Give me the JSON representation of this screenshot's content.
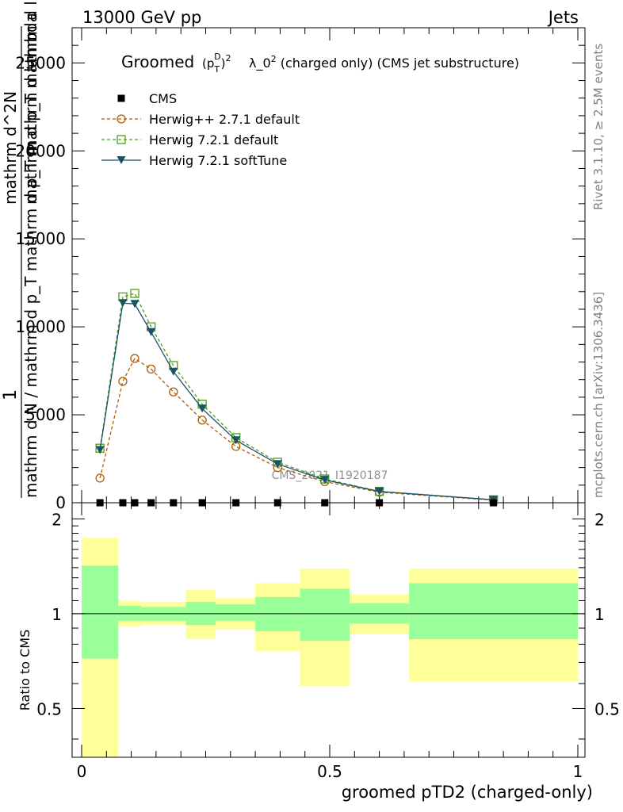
{
  "header": {
    "left": "13000 GeV pp",
    "right": "Jets"
  },
  "side_labels": {
    "rivet": "Rivet 3.1.10, ≥ 2.5M events",
    "mcplots": "mcplots.cern.ch [arXiv:1306.3436]"
  },
  "watermark": "CMS_2021_I1920187",
  "title": {
    "prefix": "Groomed",
    "formula": "(p_T^D)^2",
    "suffix": "λ_0^2  (charged only) (CMS jet substructure)"
  },
  "ylabel_main": {
    "numerator": "1",
    "denominator": "mathrm d N / mathrm d p_T mathrm d p_T mathrm d lambda",
    "top_line1": "mathrm d^2N",
    "top_line2": "mathrm d p_T mathrm d lambda"
  },
  "ylabel_ratio": "Ratio to CMS",
  "xlabel": "groomed pTD2 (charged-only)",
  "colors": {
    "cms": "#000000",
    "herwigpp": "#b35900",
    "herwig721": "#4d9e1a",
    "softtune": "#1a5266",
    "band_inner": "#99ff99",
    "band_outer": "#ffff99"
  },
  "chart_data": [
    {
      "type": "line",
      "panel": "main",
      "xlim": [
        0,
        1
      ],
      "ylim": [
        0,
        27000
      ],
      "x_ticks": [
        "0",
        "0.5",
        "1"
      ],
      "y_ticks": [
        0,
        5000,
        10000,
        15000,
        20000,
        25000
      ],
      "legend_position": "top-left",
      "series": [
        {
          "name": "CMS",
          "marker": "square",
          "x": [
            0.037,
            0.083,
            0.107,
            0.14,
            0.185,
            0.243,
            0.311,
            0.395,
            0.49,
            0.6,
            0.83
          ],
          "y": [
            0,
            0,
            0,
            0,
            0,
            0,
            0,
            0,
            0,
            0,
            0
          ]
        },
        {
          "name": "Herwig++ 2.7.1 default",
          "marker": "circle",
          "style": "dashed",
          "x": [
            0.037,
            0.083,
            0.107,
            0.14,
            0.185,
            0.243,
            0.311,
            0.395,
            0.49,
            0.6,
            0.83
          ],
          "y": [
            1400,
            6900,
            8200,
            7600,
            6300,
            4700,
            3200,
            2000,
            1200,
            600,
            150
          ]
        },
        {
          "name": "Herwig 7.2.1 default",
          "marker": "open-square",
          "style": "dashed",
          "x": [
            0.037,
            0.083,
            0.107,
            0.14,
            0.185,
            0.243,
            0.311,
            0.395,
            0.49,
            0.6,
            0.83
          ],
          "y": [
            3100,
            11700,
            11900,
            10000,
            7800,
            5600,
            3700,
            2300,
            1350,
            650,
            170
          ]
        },
        {
          "name": "Herwig 7.2.1 softTune",
          "marker": "triangle-down",
          "style": "solid",
          "x": [
            0.037,
            0.083,
            0.107,
            0.14,
            0.185,
            0.243,
            0.311,
            0.395,
            0.49,
            0.6,
            0.83
          ],
          "y": [
            3000,
            11350,
            11300,
            9700,
            7450,
            5350,
            3550,
            2200,
            1300,
            640,
            165
          ]
        }
      ]
    },
    {
      "type": "area",
      "panel": "ratio",
      "xlim": [
        0,
        1
      ],
      "ylim": [
        0.35,
        2.25
      ],
      "x_ticks": [
        "0",
        "0.5",
        "1"
      ],
      "y_ticks": [
        "0.5",
        "1",
        "2"
      ],
      "log_scale": true,
      "reference": 1,
      "bins": [
        {
          "x0": 0.0,
          "x1": 0.074,
          "inner": [
            0.72,
            1.42
          ],
          "outer": [
            0.0,
            1.74
          ]
        },
        {
          "x0": 0.074,
          "x1": 0.12,
          "inner": [
            0.95,
            1.06
          ],
          "outer": [
            0.91,
            1.1
          ]
        },
        {
          "x0": 0.12,
          "x1": 0.21,
          "inner": [
            0.95,
            1.05
          ],
          "outer": [
            0.92,
            1.09
          ]
        },
        {
          "x0": 0.21,
          "x1": 0.27,
          "inner": [
            0.92,
            1.09
          ],
          "outer": [
            0.83,
            1.19
          ]
        },
        {
          "x0": 0.27,
          "x1": 0.35,
          "inner": [
            0.95,
            1.07
          ],
          "outer": [
            0.89,
            1.12
          ]
        },
        {
          "x0": 0.35,
          "x1": 0.44,
          "inner": [
            0.88,
            1.13
          ],
          "outer": [
            0.76,
            1.25
          ]
        },
        {
          "x0": 0.44,
          "x1": 0.54,
          "inner": [
            0.82,
            1.2
          ],
          "outer": [
            0.59,
            1.39
          ]
        },
        {
          "x0": 0.54,
          "x1": 0.66,
          "inner": [
            0.93,
            1.08
          ],
          "outer": [
            0.86,
            1.15
          ]
        },
        {
          "x0": 0.66,
          "x1": 1.0,
          "inner": [
            0.83,
            1.25
          ],
          "outer": [
            0.61,
            1.39
          ]
        }
      ]
    }
  ]
}
